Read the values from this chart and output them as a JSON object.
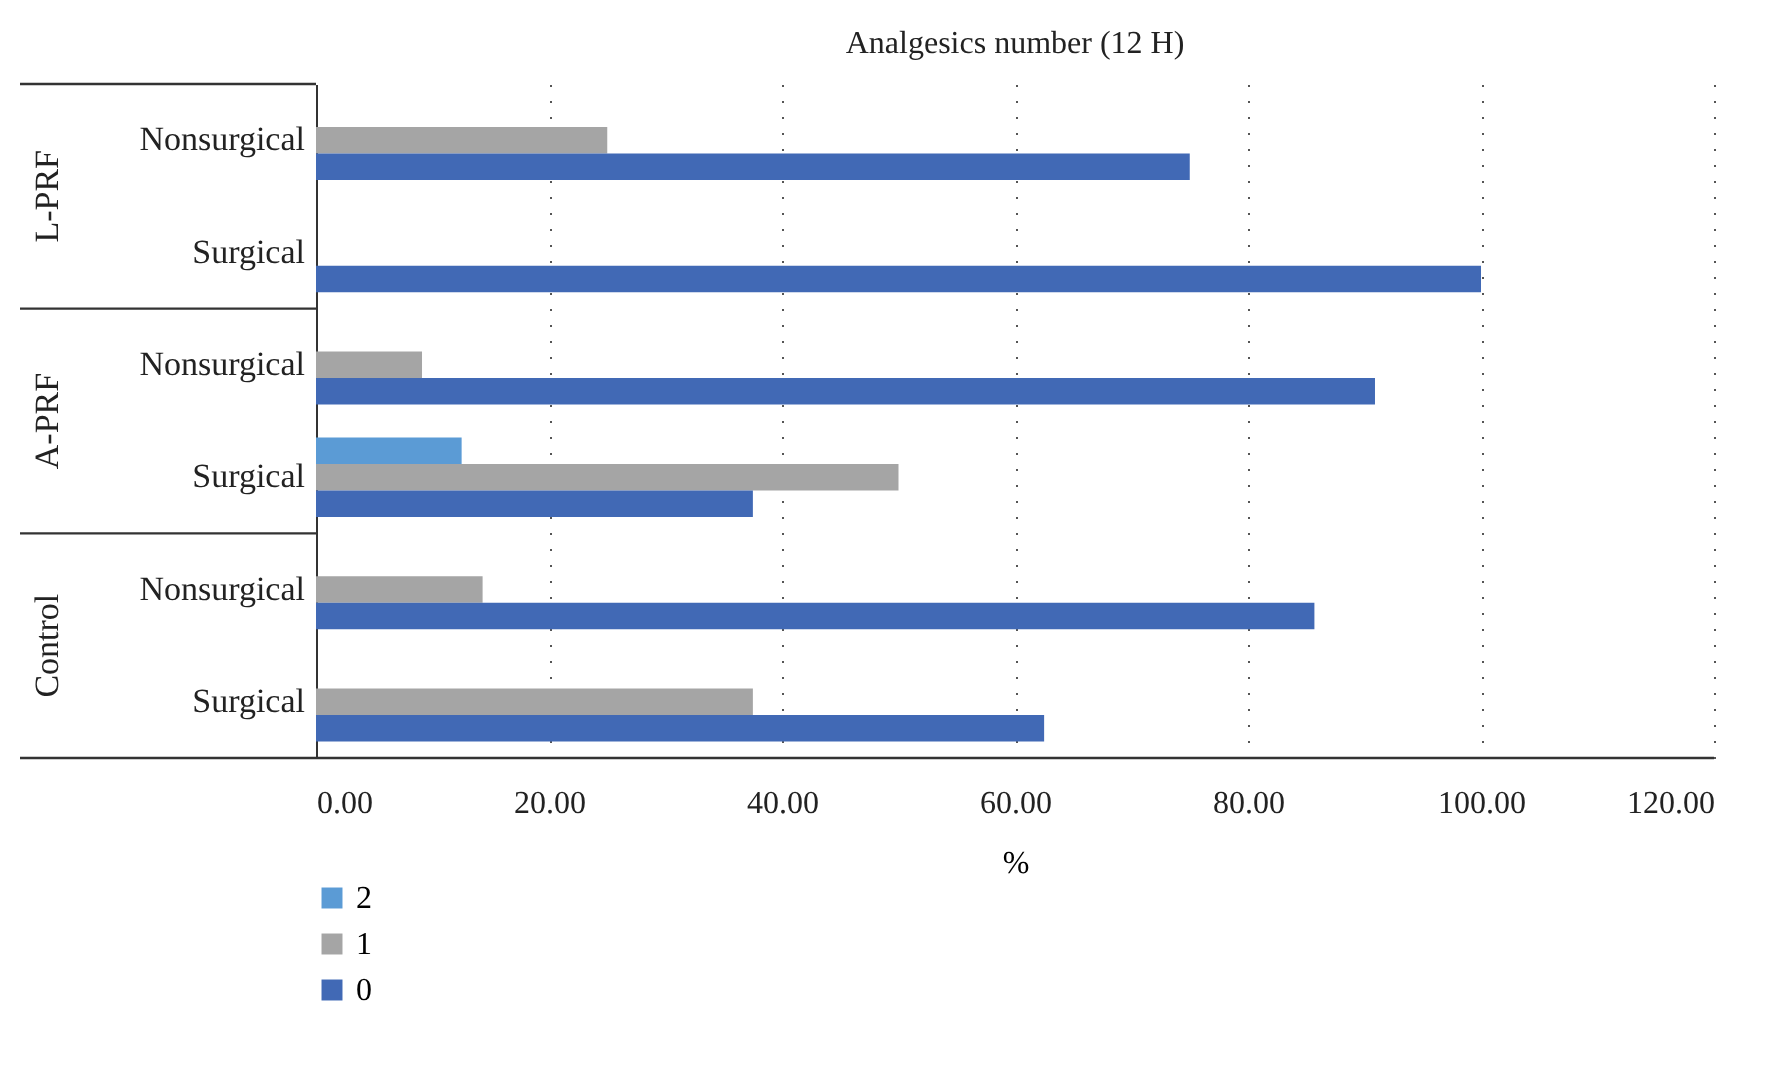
{
  "chart_data": {
    "type": "bar",
    "orientation": "horizontal",
    "title": "Analgesics number (12 H)",
    "xlabel": "%",
    "categories": [
      "Nonsurgical",
      "Surgical",
      "Nonsurgical",
      "Surgical",
      "Nonsurgical",
      "Surgical"
    ],
    "annotations": [
      "L-PRF",
      "A-PRF",
      "Control"
    ],
    "series": [
      {
        "name": "2",
        "color": "#5b9bd5",
        "values": [
          0,
          0,
          0,
          12.5,
          0,
          0
        ]
      },
      {
        "name": "1",
        "color": "#a5a5a5",
        "values": [
          25,
          0,
          9.1,
          50,
          14.3,
          37.5
        ]
      },
      {
        "name": "0",
        "color": "#4169b5",
        "values": [
          75,
          100,
          90.9,
          37.5,
          85.7,
          62.5
        ]
      }
    ],
    "xlim": [
      0,
      120
    ],
    "xticks": [
      {
        "value": 0,
        "label": "0.00"
      },
      {
        "value": 20,
        "label": "20.00"
      },
      {
        "value": 40,
        "label": "40.00"
      },
      {
        "value": 60,
        "label": "60.00"
      },
      {
        "value": 80,
        "label": "80.00"
      },
      {
        "value": 100,
        "label": "100.00"
      },
      {
        "value": 120,
        "label": "120.00"
      }
    ],
    "grid": "x",
    "legend": "bottom left"
  }
}
